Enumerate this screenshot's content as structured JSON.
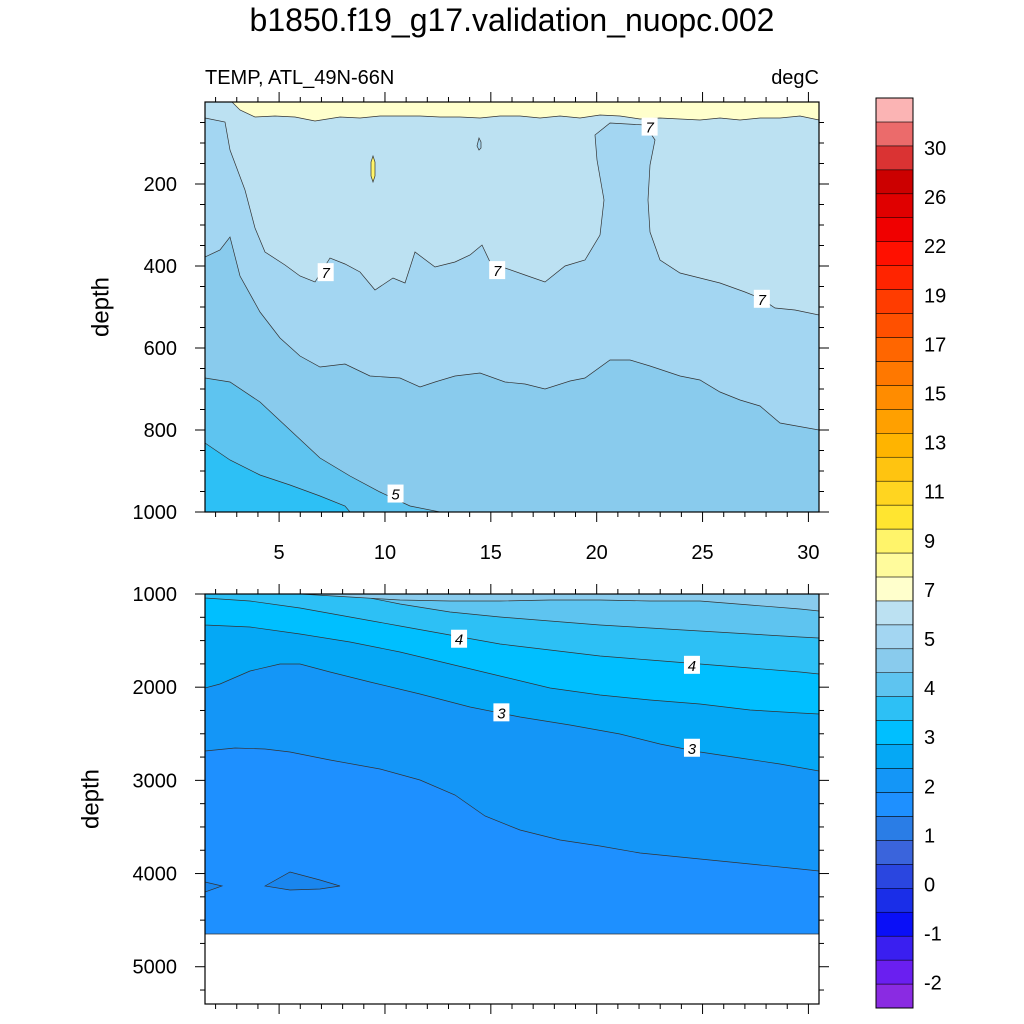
{
  "title": "b1850.f19_g17.validation_nuopc.002",
  "chart_data": {
    "type": "contour",
    "title": "b1850.f19_g17.validation_nuopc.002",
    "left_string": "TEMP, ATL_49N-66N",
    "right_string": "degC",
    "ylabel": "depth",
    "xlim": [
      1.5,
      30.5
    ],
    "x_ticks": [
      5,
      10,
      15,
      20,
      25,
      30
    ],
    "panels": [
      {
        "name": "upper",
        "ylim": [
          1000,
          0
        ],
        "y_ticks": [
          200,
          400,
          600,
          800,
          1000
        ],
        "contour_labels": [
          {
            "text": "7",
            "x": 7.2,
            "y": 415
          },
          {
            "text": "7",
            "x": 15.3,
            "y": 410
          },
          {
            "text": "7",
            "x": 22.5,
            "y": 60
          },
          {
            "text": "7",
            "x": 27.8,
            "y": 480
          },
          {
            "text": "5",
            "x": 10.5,
            "y": 955
          }
        ]
      },
      {
        "name": "lower",
        "ylim": [
          5400,
          1000
        ],
        "y_ticks": [
          1000,
          2000,
          3000,
          4000,
          5000
        ],
        "contour_labels": [
          {
            "text": "4",
            "x": 13.5,
            "y": 1480
          },
          {
            "text": "4",
            "x": 24.5,
            "y": 1760
          },
          {
            "text": "3",
            "x": 15.5,
            "y": 2270
          },
          {
            "text": "3",
            "x": 24.5,
            "y": 2650
          }
        ]
      }
    ],
    "colorbar": {
      "labels": [
        "30",
        "26",
        "22",
        "19",
        "17",
        "15",
        "13",
        "11",
        "9",
        "7",
        "5",
        "4",
        "3",
        "2",
        "1",
        "0",
        "-1",
        "-2"
      ],
      "colors_bottom_to_top": [
        "#8a2be2",
        "#6a1ff0",
        "#3a1ff0",
        "#0a0ff7",
        "#1a2ee8",
        "#2a46e0",
        "#3a64dc",
        "#2a7de6",
        "#1e90ff",
        "#1496f7",
        "#05a8f5",
        "#00bfff",
        "#2dc0f5",
        "#5ec4f0",
        "#89cbed",
        "#a3d6f2",
        "#bce1f2",
        "#ffffcc",
        "#fffb9c",
        "#fff46a",
        "#ffe530",
        "#ffd520",
        "#ffc410",
        "#ffb400",
        "#ffa000",
        "#ff8c00",
        "#ff7800",
        "#ff6600",
        "#ff5000",
        "#ff3c00",
        "#ff2400",
        "#ff1000",
        "#f00000",
        "#e00000",
        "#cc0000",
        "#da3333",
        "#eb6b6b",
        "#fbb4b4"
      ]
    }
  }
}
